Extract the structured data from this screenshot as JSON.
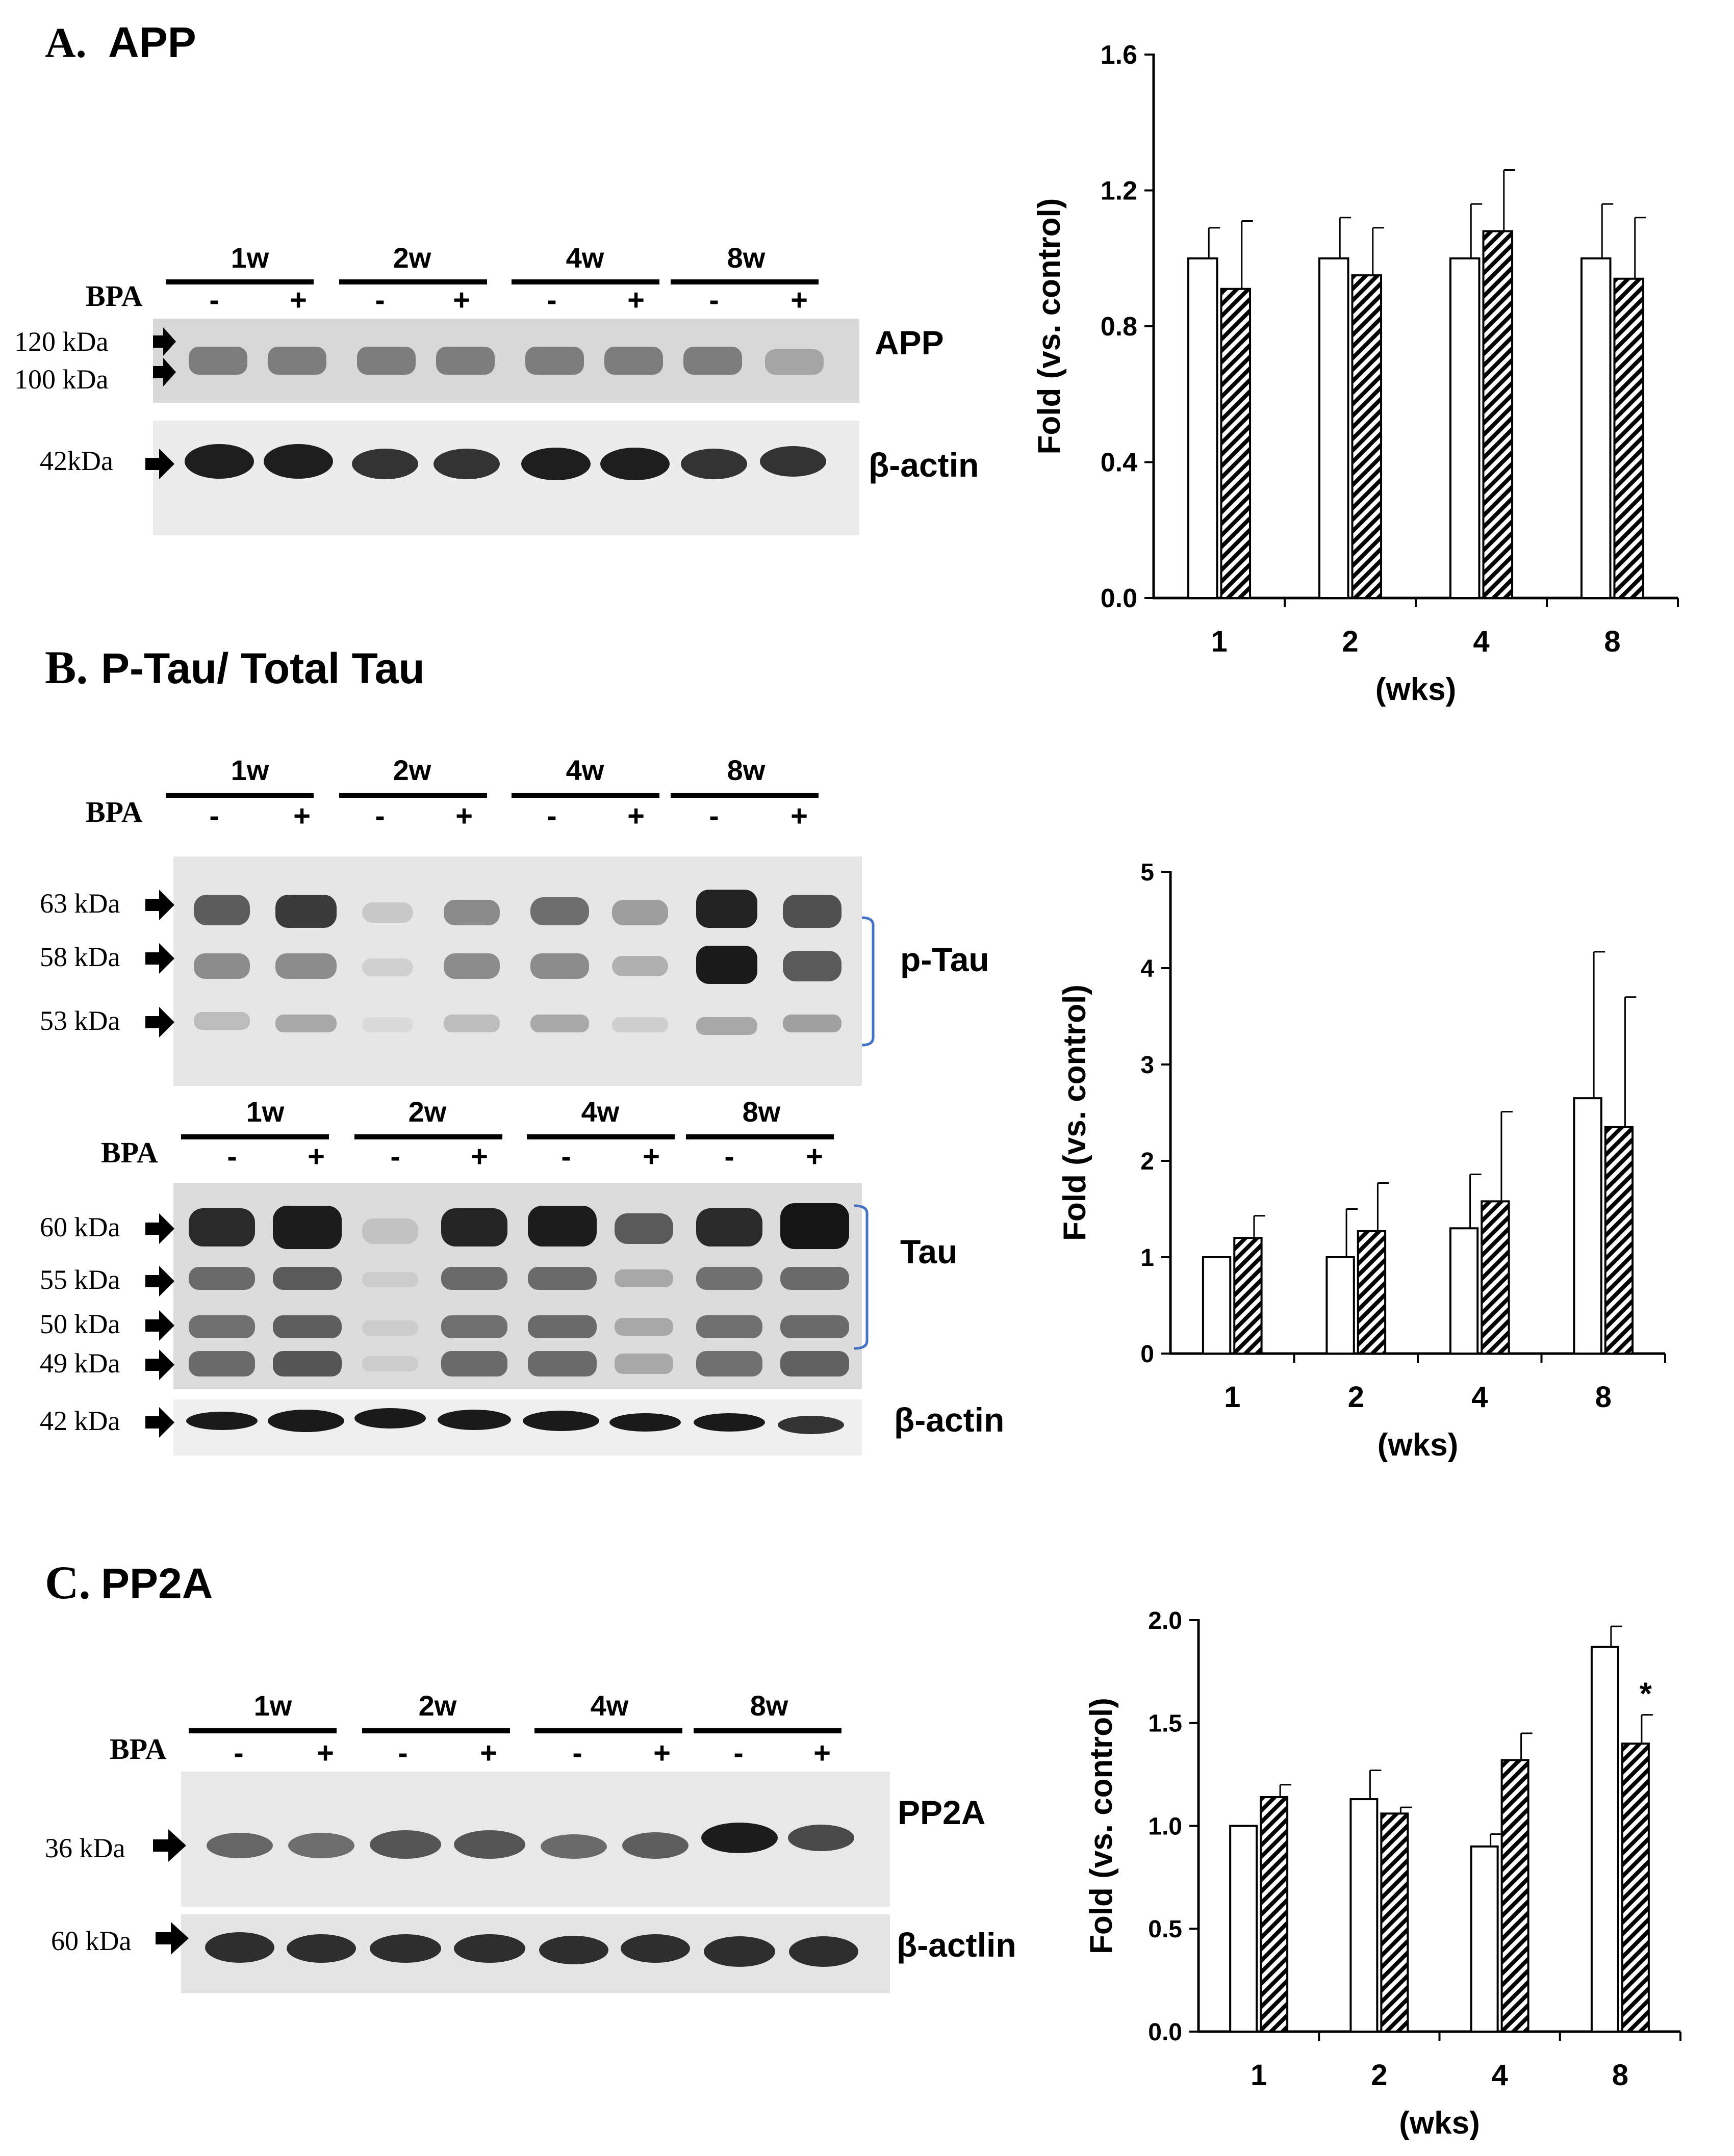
{
  "panels": [
    {
      "letter": "A.",
      "title": "APP",
      "blots": [
        {
          "weeks": [
            "1w",
            "2w",
            "4w",
            "8w"
          ],
          "bpa_label": "BPA",
          "signs": [
            "-",
            "+",
            "-",
            "+",
            "-",
            "+",
            "-",
            "+"
          ],
          "markers": [
            "120 kDa",
            "100 kDa",
            "42kDa"
          ],
          "proteins": [
            "APP",
            "β-actin"
          ]
        }
      ]
    },
    {
      "letter": "B.",
      "title": "P-Tau/ Total Tau",
      "blots": [
        {
          "weeks": [
            "1w",
            "2w",
            "4w",
            "8w"
          ],
          "bpa_label": "BPA",
          "signs": [
            "-",
            "+",
            "-",
            "+",
            "-",
            "+",
            "-",
            "+"
          ],
          "markers": [
            "63 kDa",
            "58 kDa",
            "53 kDa"
          ],
          "proteins": [
            "p-Tau"
          ]
        },
        {
          "weeks": [
            "1w",
            "2w",
            "4w",
            "8w"
          ],
          "bpa_label": "BPA",
          "signs": [
            "-",
            "+",
            "-",
            "+",
            "-",
            "+",
            "-",
            "+"
          ],
          "markers": [
            "60 kDa",
            "55 kDa",
            "50 kDa",
            "49 kDa",
            "42 kDa"
          ],
          "proteins": [
            "Tau",
            "β-actin"
          ]
        }
      ]
    },
    {
      "letter": "C.",
      "title": "PP2A",
      "blots": [
        {
          "weeks": [
            "1w",
            "2w",
            "4w",
            "8w"
          ],
          "bpa_label": "BPA",
          "signs": [
            "-",
            "+",
            "-",
            "+",
            "-",
            "+",
            "-",
            "+"
          ],
          "markers": [
            "36 kDa",
            "60 kDa"
          ],
          "proteins": [
            "PP2A",
            "β-actlin"
          ]
        }
      ]
    }
  ],
  "chart_data": [
    {
      "type": "bar",
      "categories": [
        "1",
        "2",
        "4",
        "8"
      ],
      "xlabel": "(wks)",
      "ylabel": "Fold (vs. control)",
      "ylim": [
        0,
        1.6
      ],
      "yticks": [
        "0.0",
        "0.4",
        "0.8",
        "1.2",
        "1.6"
      ],
      "series": [
        {
          "fill": "open",
          "values": [
            1.0,
            1.0,
            1.0,
            1.0
          ],
          "errors": [
            0.09,
            0.12,
            0.16,
            0.16
          ]
        },
        {
          "fill": "hatched",
          "values": [
            0.91,
            0.95,
            1.08,
            0.94
          ],
          "errors": [
            0.2,
            0.14,
            0.18,
            0.18
          ]
        }
      ],
      "annotations": []
    },
    {
      "type": "bar",
      "categories": [
        "1",
        "2",
        "4",
        "8"
      ],
      "xlabel": "(wks)",
      "ylabel": "Fold (vs. control)",
      "ylim": [
        0,
        5
      ],
      "yticks": [
        "0",
        "1",
        "2",
        "3",
        "4",
        "5"
      ],
      "series": [
        {
          "fill": "open",
          "values": [
            1.0,
            1.0,
            1.3,
            2.65
          ],
          "errors": [
            0,
            0.5,
            0.56,
            1.52
          ]
        },
        {
          "fill": "hatched",
          "values": [
            1.2,
            1.27,
            1.58,
            2.35
          ],
          "errors": [
            0.23,
            0.5,
            0.93,
            1.35
          ]
        }
      ],
      "annotations": []
    },
    {
      "type": "bar",
      "categories": [
        "1",
        "2",
        "4",
        "8"
      ],
      "xlabel": "(wks)",
      "ylabel": "Fold (vs. control)",
      "ylim": [
        0,
        2.0
      ],
      "yticks": [
        "0.0",
        "0.5",
        "1.0",
        "1.5",
        "2.0"
      ],
      "series": [
        {
          "fill": "open",
          "values": [
            1.0,
            1.13,
            0.9,
            1.87
          ],
          "errors": [
            0,
            0.14,
            0.06,
            0.1
          ]
        },
        {
          "fill": "hatched",
          "values": [
            1.14,
            1.06,
            1.32,
            1.4
          ],
          "errors": [
            0.06,
            0.03,
            0.13,
            0.14
          ]
        }
      ],
      "annotations": [
        {
          "category": "8",
          "series": 1,
          "text": "*"
        }
      ]
    }
  ]
}
